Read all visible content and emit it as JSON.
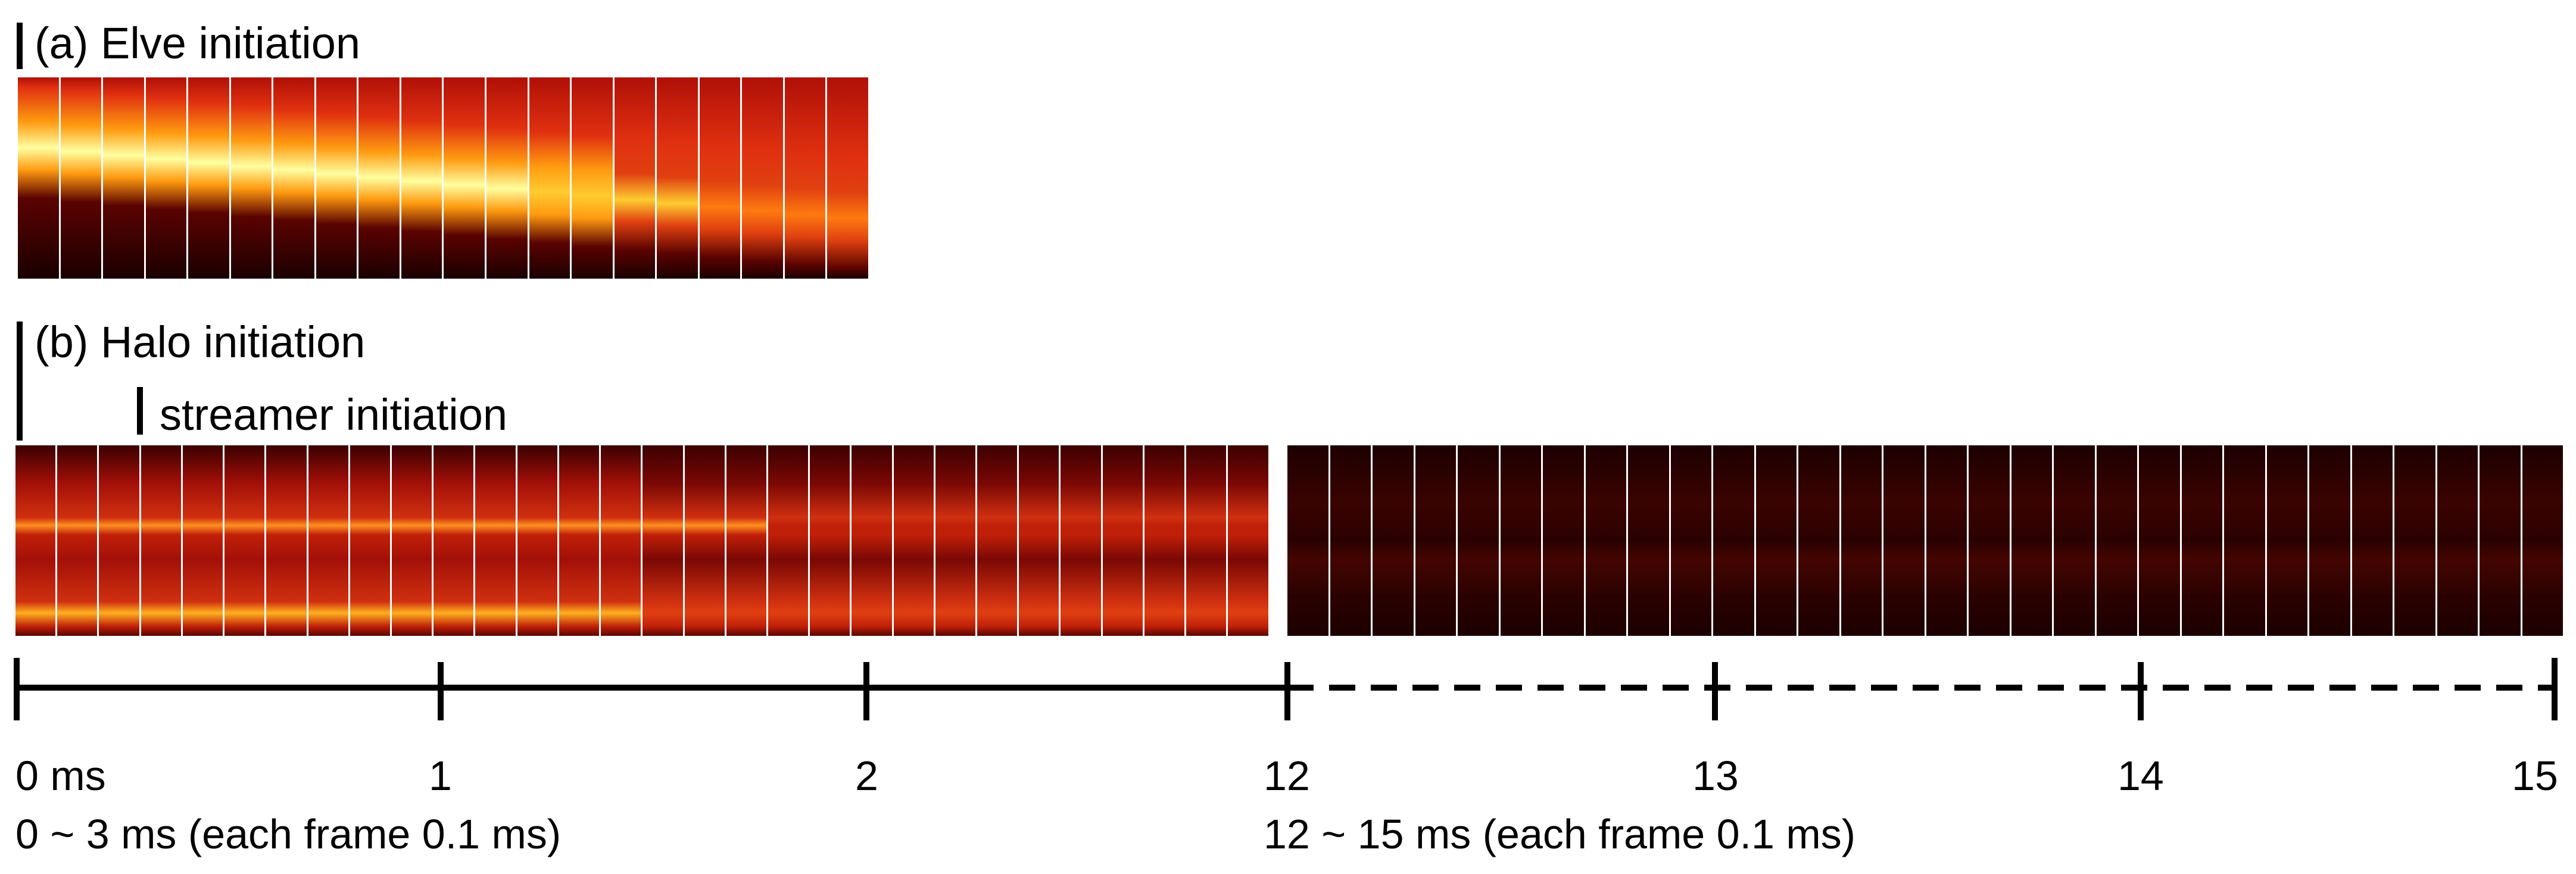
{
  "panel_a": {
    "title": "(a) Elve initiation",
    "frame_count": 20
  },
  "panel_b": {
    "title": "(b) Halo initiation",
    "marker_label": "streamer initiation",
    "segment1_frame_count": 30,
    "segment2_frame_count": 30
  },
  "timeline": {
    "tick_labels": [
      "0 ms",
      "1",
      "2",
      "12",
      "13",
      "14",
      "15"
    ],
    "range_label_1": "0 ~ 3 ms (each frame 0.1 ms)",
    "range_label_2": "12 ~ 15 ms (each frame 0.1 ms)",
    "solid_segment": "0 – 3 ms",
    "dashed_segment": "12 – 15 ms"
  },
  "colors": {
    "dark": "#1a0000",
    "mid": "#b0180a",
    "hot": "#ff8c00",
    "bright": "#ffff80"
  }
}
